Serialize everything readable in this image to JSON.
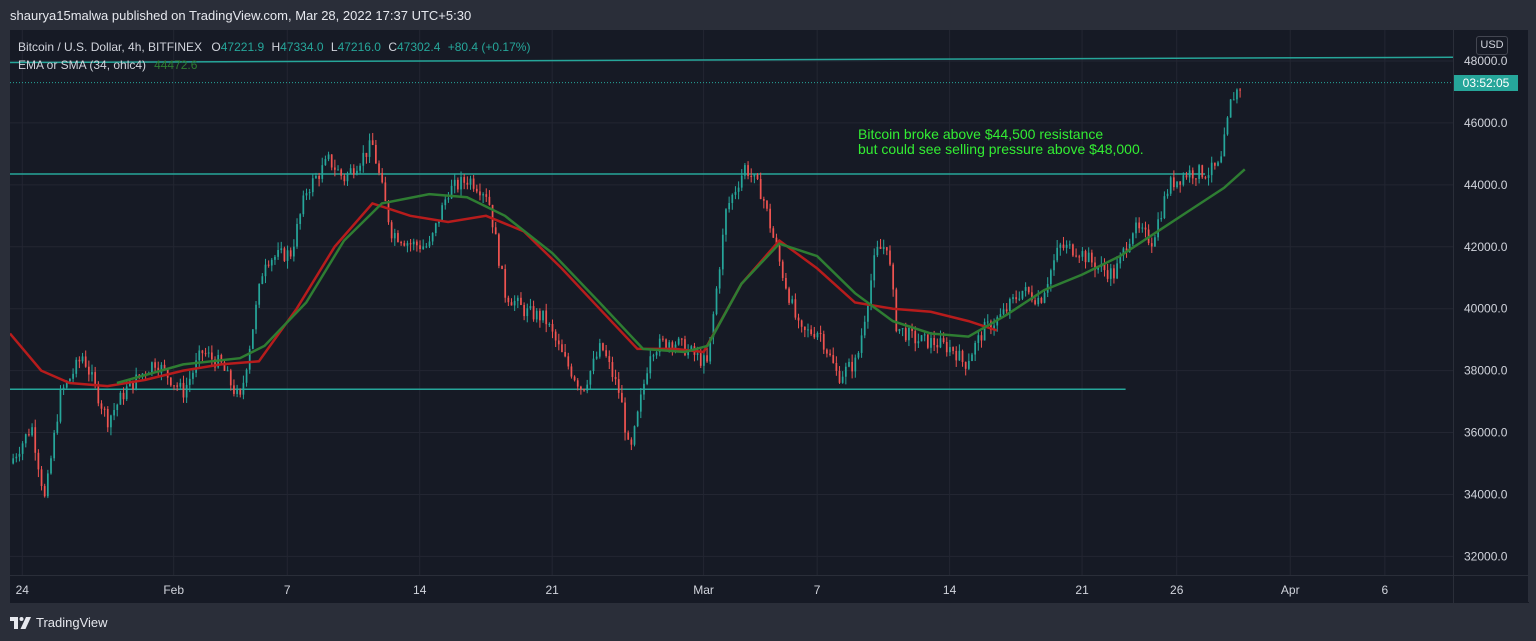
{
  "header": {
    "publish_text": "shaurya15malwa published on TradingView.com, Mar 28, 2022 17:37 UTC+5:30"
  },
  "legend": {
    "symbol": "Bitcoin / U.S. Dollar, 4h, BITFINEX",
    "open_label": "O",
    "open": "47221.9",
    "high_label": "H",
    "high": "47334.0",
    "low_label": "L",
    "low": "47216.0",
    "close_label": "C",
    "close": "47302.4",
    "change": "+80.4 (+0.17%)",
    "indicator": "EMA or SMA (34, ohlc4)",
    "indicator_value": "44472.6"
  },
  "annotation": {
    "line1": "Bitcoin broke above $44,500 resistance",
    "line2": "but could see selling pressure above $48,000."
  },
  "price_axis": {
    "currency": "USD",
    "countdown": "03:52:05"
  },
  "footer": {
    "brand": "TradingView"
  },
  "colors": {
    "up": "#26a69a",
    "down": "#ef5350",
    "ema": "#b71c1c",
    "sma": "#2e7d32",
    "line": "#26a69a",
    "annotation": "#33ee33"
  },
  "chart_data": {
    "type": "candlestick",
    "timeframe": "4h",
    "last_price": 47302.4,
    "ylim": [
      31400,
      49000
    ],
    "yticks": [
      32000,
      34000,
      36000,
      38000,
      40000,
      42000,
      44000,
      46000,
      48000
    ],
    "ytick_labels": [
      "32000.0",
      "34000.0",
      "36000.0",
      "38000.0",
      "40000.0",
      "42000.0",
      "44000.0",
      "46000.0",
      "48000.0"
    ],
    "xticks": [
      {
        "label": "24",
        "day": 0
      },
      {
        "label": "Feb",
        "day": 8
      },
      {
        "label": "7",
        "day": 14
      },
      {
        "label": "14",
        "day": 21
      },
      {
        "label": "21",
        "day": 28
      },
      {
        "label": "Mar",
        "day": 36
      },
      {
        "label": "7",
        "day": 42
      },
      {
        "label": "14",
        "day": 49
      },
      {
        "label": "21",
        "day": 56
      },
      {
        "label": "26",
        "day": 61
      },
      {
        "label": "Apr",
        "day": 67
      },
      {
        "label": "6",
        "day": 72
      }
    ],
    "xlim_days": [
      -0.65,
      75.6
    ],
    "price_path": [
      [
        -0.65,
        35000
      ],
      [
        0.5,
        36200
      ],
      [
        1.2,
        33800
      ],
      [
        2.0,
        37200
      ],
      [
        3.2,
        38500
      ],
      [
        4.5,
        36400
      ],
      [
        5.5,
        37400
      ],
      [
        7.0,
        38300
      ],
      [
        8.5,
        37300
      ],
      [
        9.5,
        38600
      ],
      [
        10.5,
        38200
      ],
      [
        11.5,
        37000
      ],
      [
        12.8,
        41600
      ],
      [
        14.2,
        41800
      ],
      [
        15.0,
        43800
      ],
      [
        16.2,
        44800
      ],
      [
        17.0,
        44200
      ],
      [
        18.5,
        45300
      ],
      [
        19.5,
        42500
      ],
      [
        20.5,
        42100
      ],
      [
        21.5,
        42000
      ],
      [
        22.5,
        43800
      ],
      [
        23.6,
        44200
      ],
      [
        24.6,
        43700
      ],
      [
        25.5,
        40500
      ],
      [
        26.6,
        39900
      ],
      [
        27.6,
        39700
      ],
      [
        28.6,
        38400
      ],
      [
        29.6,
        37400
      ],
      [
        30.6,
        38800
      ],
      [
        31.6,
        37200
      ],
      [
        32.1,
        35200
      ],
      [
        33.2,
        38700
      ],
      [
        34.3,
        39000
      ],
      [
        35.3,
        38600
      ],
      [
        36.2,
        38200
      ],
      [
        37.2,
        43200
      ],
      [
        38.2,
        44600
      ],
      [
        39.1,
        43700
      ],
      [
        40.1,
        41300
      ],
      [
        41.1,
        39200
      ],
      [
        42.1,
        39300
      ],
      [
        43.1,
        37800
      ],
      [
        44.1,
        38300
      ],
      [
        45.1,
        41800
      ],
      [
        45.7,
        42100
      ],
      [
        46.2,
        39400
      ],
      [
        47.2,
        39000
      ],
      [
        48.2,
        38900
      ],
      [
        49.2,
        38700
      ],
      [
        49.8,
        38200
      ],
      [
        50.8,
        39300
      ],
      [
        51.8,
        39800
      ],
      [
        52.8,
        40600
      ],
      [
        53.8,
        40300
      ],
      [
        54.8,
        42000
      ],
      [
        55.8,
        41900
      ],
      [
        56.7,
        41400
      ],
      [
        57.7,
        41100
      ],
      [
        58.7,
        42600
      ],
      [
        59.7,
        42200
      ],
      [
        60.6,
        44000
      ],
      [
        61.6,
        44400
      ],
      [
        62.6,
        44400
      ],
      [
        63.3,
        44600
      ],
      [
        63.9,
        46800
      ],
      [
        64.5,
        47300
      ]
    ],
    "sma_path": [
      [
        5.0,
        37600
      ],
      [
        8.5,
        38200
      ],
      [
        11.5,
        38400
      ],
      [
        12.8,
        38800
      ],
      [
        15.0,
        40200
      ],
      [
        17.0,
        42200
      ],
      [
        19.0,
        43400
      ],
      [
        21.5,
        43700
      ],
      [
        23.5,
        43600
      ],
      [
        25.5,
        43000
      ],
      [
        28.0,
        41800
      ],
      [
        30.5,
        40200
      ],
      [
        32.8,
        38700
      ],
      [
        35.0,
        38600
      ],
      [
        36.2,
        38800
      ],
      [
        38.0,
        40800
      ],
      [
        40.0,
        42100
      ],
      [
        42.0,
        41700
      ],
      [
        44.0,
        40500
      ],
      [
        46.0,
        39600
      ],
      [
        48.0,
        39200
      ],
      [
        50.0,
        39100
      ],
      [
        52.0,
        39800
      ],
      [
        54.0,
        40600
      ],
      [
        56.0,
        41100
      ],
      [
        58.0,
        41700
      ],
      [
        60.0,
        42500
      ],
      [
        62.0,
        43300
      ],
      [
        63.5,
        43900
      ],
      [
        64.6,
        44500
      ]
    ],
    "ema_path": [
      [
        -0.65,
        39200
      ],
      [
        1.0,
        38000
      ],
      [
        2.5,
        37600
      ],
      [
        4.5,
        37500
      ],
      [
        6.5,
        37700
      ],
      [
        8.5,
        38000
      ],
      [
        10.5,
        38200
      ],
      [
        12.5,
        38300
      ],
      [
        14.5,
        40000
      ],
      [
        16.5,
        42000
      ],
      [
        18.5,
        43400
      ],
      [
        20.5,
        43000
      ],
      [
        22.5,
        42800
      ],
      [
        24.5,
        43000
      ],
      [
        26.5,
        42500
      ],
      [
        28.5,
        41300
      ],
      [
        30.5,
        40000
      ],
      [
        32.5,
        38700
      ],
      [
        34.5,
        38700
      ],
      [
        36.0,
        38600
      ],
      [
        38.0,
        40800
      ],
      [
        40.0,
        42200
      ],
      [
        42.0,
        41300
      ],
      [
        44.0,
        40200
      ],
      [
        46.0,
        40000
      ],
      [
        48.0,
        39900
      ],
      [
        50.0,
        39600
      ],
      [
        51.5,
        39300
      ]
    ],
    "trendlines": [
      {
        "name": "upper",
        "from": [
          -0.65,
          47950
        ],
        "to": [
          75.6,
          48120
        ]
      },
      {
        "name": "resistance",
        "from": [
          -0.65,
          44350
        ],
        "to": [
          62.5,
          44350
        ]
      },
      {
        "name": "support",
        "from": [
          -0.65,
          37400
        ],
        "to": [
          58.3,
          37400
        ]
      }
    ]
  }
}
